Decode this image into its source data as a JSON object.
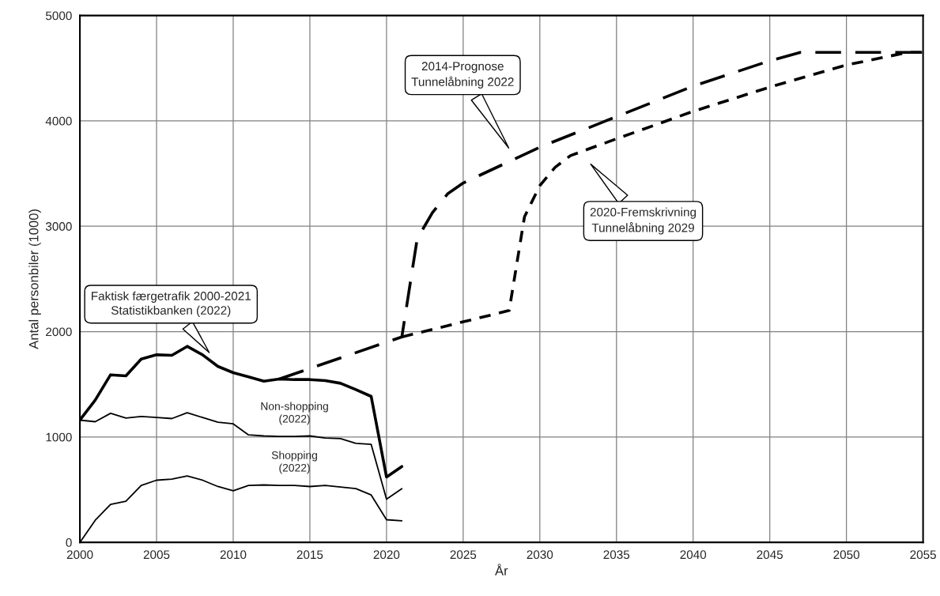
{
  "chart_data": {
    "type": "line",
    "xlabel": "År",
    "ylabel": "Antal personbiler (1000)",
    "xlim": [
      2000,
      2055
    ],
    "xticks": [
      2000,
      2005,
      2010,
      2015,
      2020,
      2025,
      2030,
      2035,
      2040,
      2045,
      2050,
      2055
    ],
    "ylim": [
      0,
      5000
    ],
    "yticks": [
      0,
      1000,
      2000,
      3000,
      4000,
      5000
    ],
    "grid": true,
    "legend": false,
    "marker": "none",
    "series": [
      {
        "color": "#000000",
        "line_style": "solid",
        "x": [
          2000,
          2001,
          2002,
          2003,
          2004,
          2005,
          2006,
          2007,
          2008,
          2009,
          2010,
          2011,
          2012,
          2013,
          2014,
          2015,
          2016,
          2017,
          2018,
          2019,
          2020,
          2021
        ],
        "values": [
          1160,
          1350,
          1590,
          1580,
          1740,
          1780,
          1775,
          1860,
          1780,
          1670,
          1610,
          1570,
          1530,
          1550,
          1545,
          1545,
          1535,
          1510,
          1450,
          1385,
          620,
          720
        ]
      },
      {
        "name": "Non-shopping\n(2022)",
        "color": "#000000",
        "line_style": "solid",
        "x": [
          2000,
          2001,
          2002,
          2003,
          2004,
          2005,
          2006,
          2007,
          2008,
          2009,
          2010,
          2011,
          2012,
          2013,
          2014,
          2015,
          2016,
          2017,
          2018,
          2019,
          2020,
          2021
        ],
        "values": [
          1160,
          1145,
          1225,
          1180,
          1195,
          1185,
          1175,
          1230,
          1185,
          1140,
          1125,
          1020,
          1010,
          1005,
          1005,
          1010,
          990,
          985,
          940,
          930,
          410,
          510
        ]
      },
      {
        "name": "Shopping\n(2022)",
        "color": "#000000",
        "line_style": "solid",
        "x": [
          2000,
          2001,
          2002,
          2003,
          2004,
          2005,
          2006,
          2007,
          2008,
          2009,
          2010,
          2011,
          2012,
          2013,
          2014,
          2015,
          2016,
          2017,
          2018,
          2019,
          2020,
          2021
        ],
        "values": [
          0,
          210,
          360,
          390,
          540,
          590,
          600,
          630,
          590,
          530,
          490,
          540,
          545,
          540,
          540,
          530,
          540,
          525,
          510,
          450,
          215,
          205
        ]
      },
      {
        "color": "#000000",
        "line_style": "dashed",
        "x": [
          2013,
          2021,
          2022,
          2023,
          2024,
          2025,
          2030,
          2035,
          2040,
          2045,
          2047,
          2055
        ],
        "values": [
          1550,
          1950,
          2880,
          3130,
          3310,
          3410,
          3750,
          4040,
          4330,
          4570,
          4650,
          4650
        ]
      },
      {
        "color": "#000000",
        "line_style": "dotted",
        "x": [
          2021,
          2028,
          2029,
          2030,
          2031,
          2032,
          2035,
          2040,
          2045,
          2050,
          2054,
          2055
        ],
        "values": [
          1950,
          2200,
          3090,
          3385,
          3560,
          3670,
          3830,
          4090,
          4320,
          4530,
          4650,
          4650
        ]
      }
    ],
    "annotations": [
      "Faktisk færgetrafik 2000-2021\nStatistikbanken (2022)",
      "2014-Prognose\nTunnelåbning 2022",
      "2020-Fremskrivning\nTunnelåbning 2029"
    ]
  }
}
